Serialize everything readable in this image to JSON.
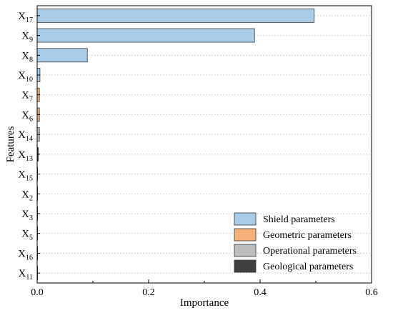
{
  "chart_data": {
    "type": "bar",
    "orientation": "horizontal",
    "xlabel": "Importance",
    "ylabel": "Features",
    "xlim": [
      0,
      0.6
    ],
    "xticks": [
      "0.0",
      "0.2",
      "0.4",
      "0.6"
    ],
    "grid": "horizontal dotted",
    "legend_position": "bottom-right",
    "categories": [
      {
        "base": "X",
        "sub": "17"
      },
      {
        "base": "X",
        "sub": "9"
      },
      {
        "base": "X",
        "sub": "8"
      },
      {
        "base": "X",
        "sub": "10"
      },
      {
        "base": "X",
        "sub": "7"
      },
      {
        "base": "X",
        "sub": "6"
      },
      {
        "base": "X",
        "sub": "14"
      },
      {
        "base": "X",
        "sub": "13"
      },
      {
        "base": "X",
        "sub": "15"
      },
      {
        "base": "X",
        "sub": "2"
      },
      {
        "base": "X",
        "sub": "3"
      },
      {
        "base": "X",
        "sub": "5"
      },
      {
        "base": "X",
        "sub": "16"
      },
      {
        "base": "X",
        "sub": "11"
      }
    ],
    "values": [
      0.497,
      0.39,
      0.09,
      0.005,
      0.004,
      0.004,
      0.004,
      0.002,
      0.0005,
      0.0003,
      0.0003,
      0.0003,
      0.0003,
      0.0003
    ],
    "groups": [
      "shield",
      "shield",
      "shield",
      "shield",
      "geometric",
      "geometric",
      "operational",
      "geological",
      "operational",
      "operational",
      "operational",
      "operational",
      "operational",
      "operational"
    ],
    "legend": [
      {
        "key": "shield",
        "label": "Shield parameters",
        "color": "#a9cde9"
      },
      {
        "key": "geometric",
        "label": "Geometric parameters",
        "color": "#f7b07a"
      },
      {
        "key": "operational",
        "label": "Operational parameters",
        "color": "#bdbdbd"
      },
      {
        "key": "geological",
        "label": "Geological parameters",
        "color": "#3f3f3f"
      }
    ]
  }
}
